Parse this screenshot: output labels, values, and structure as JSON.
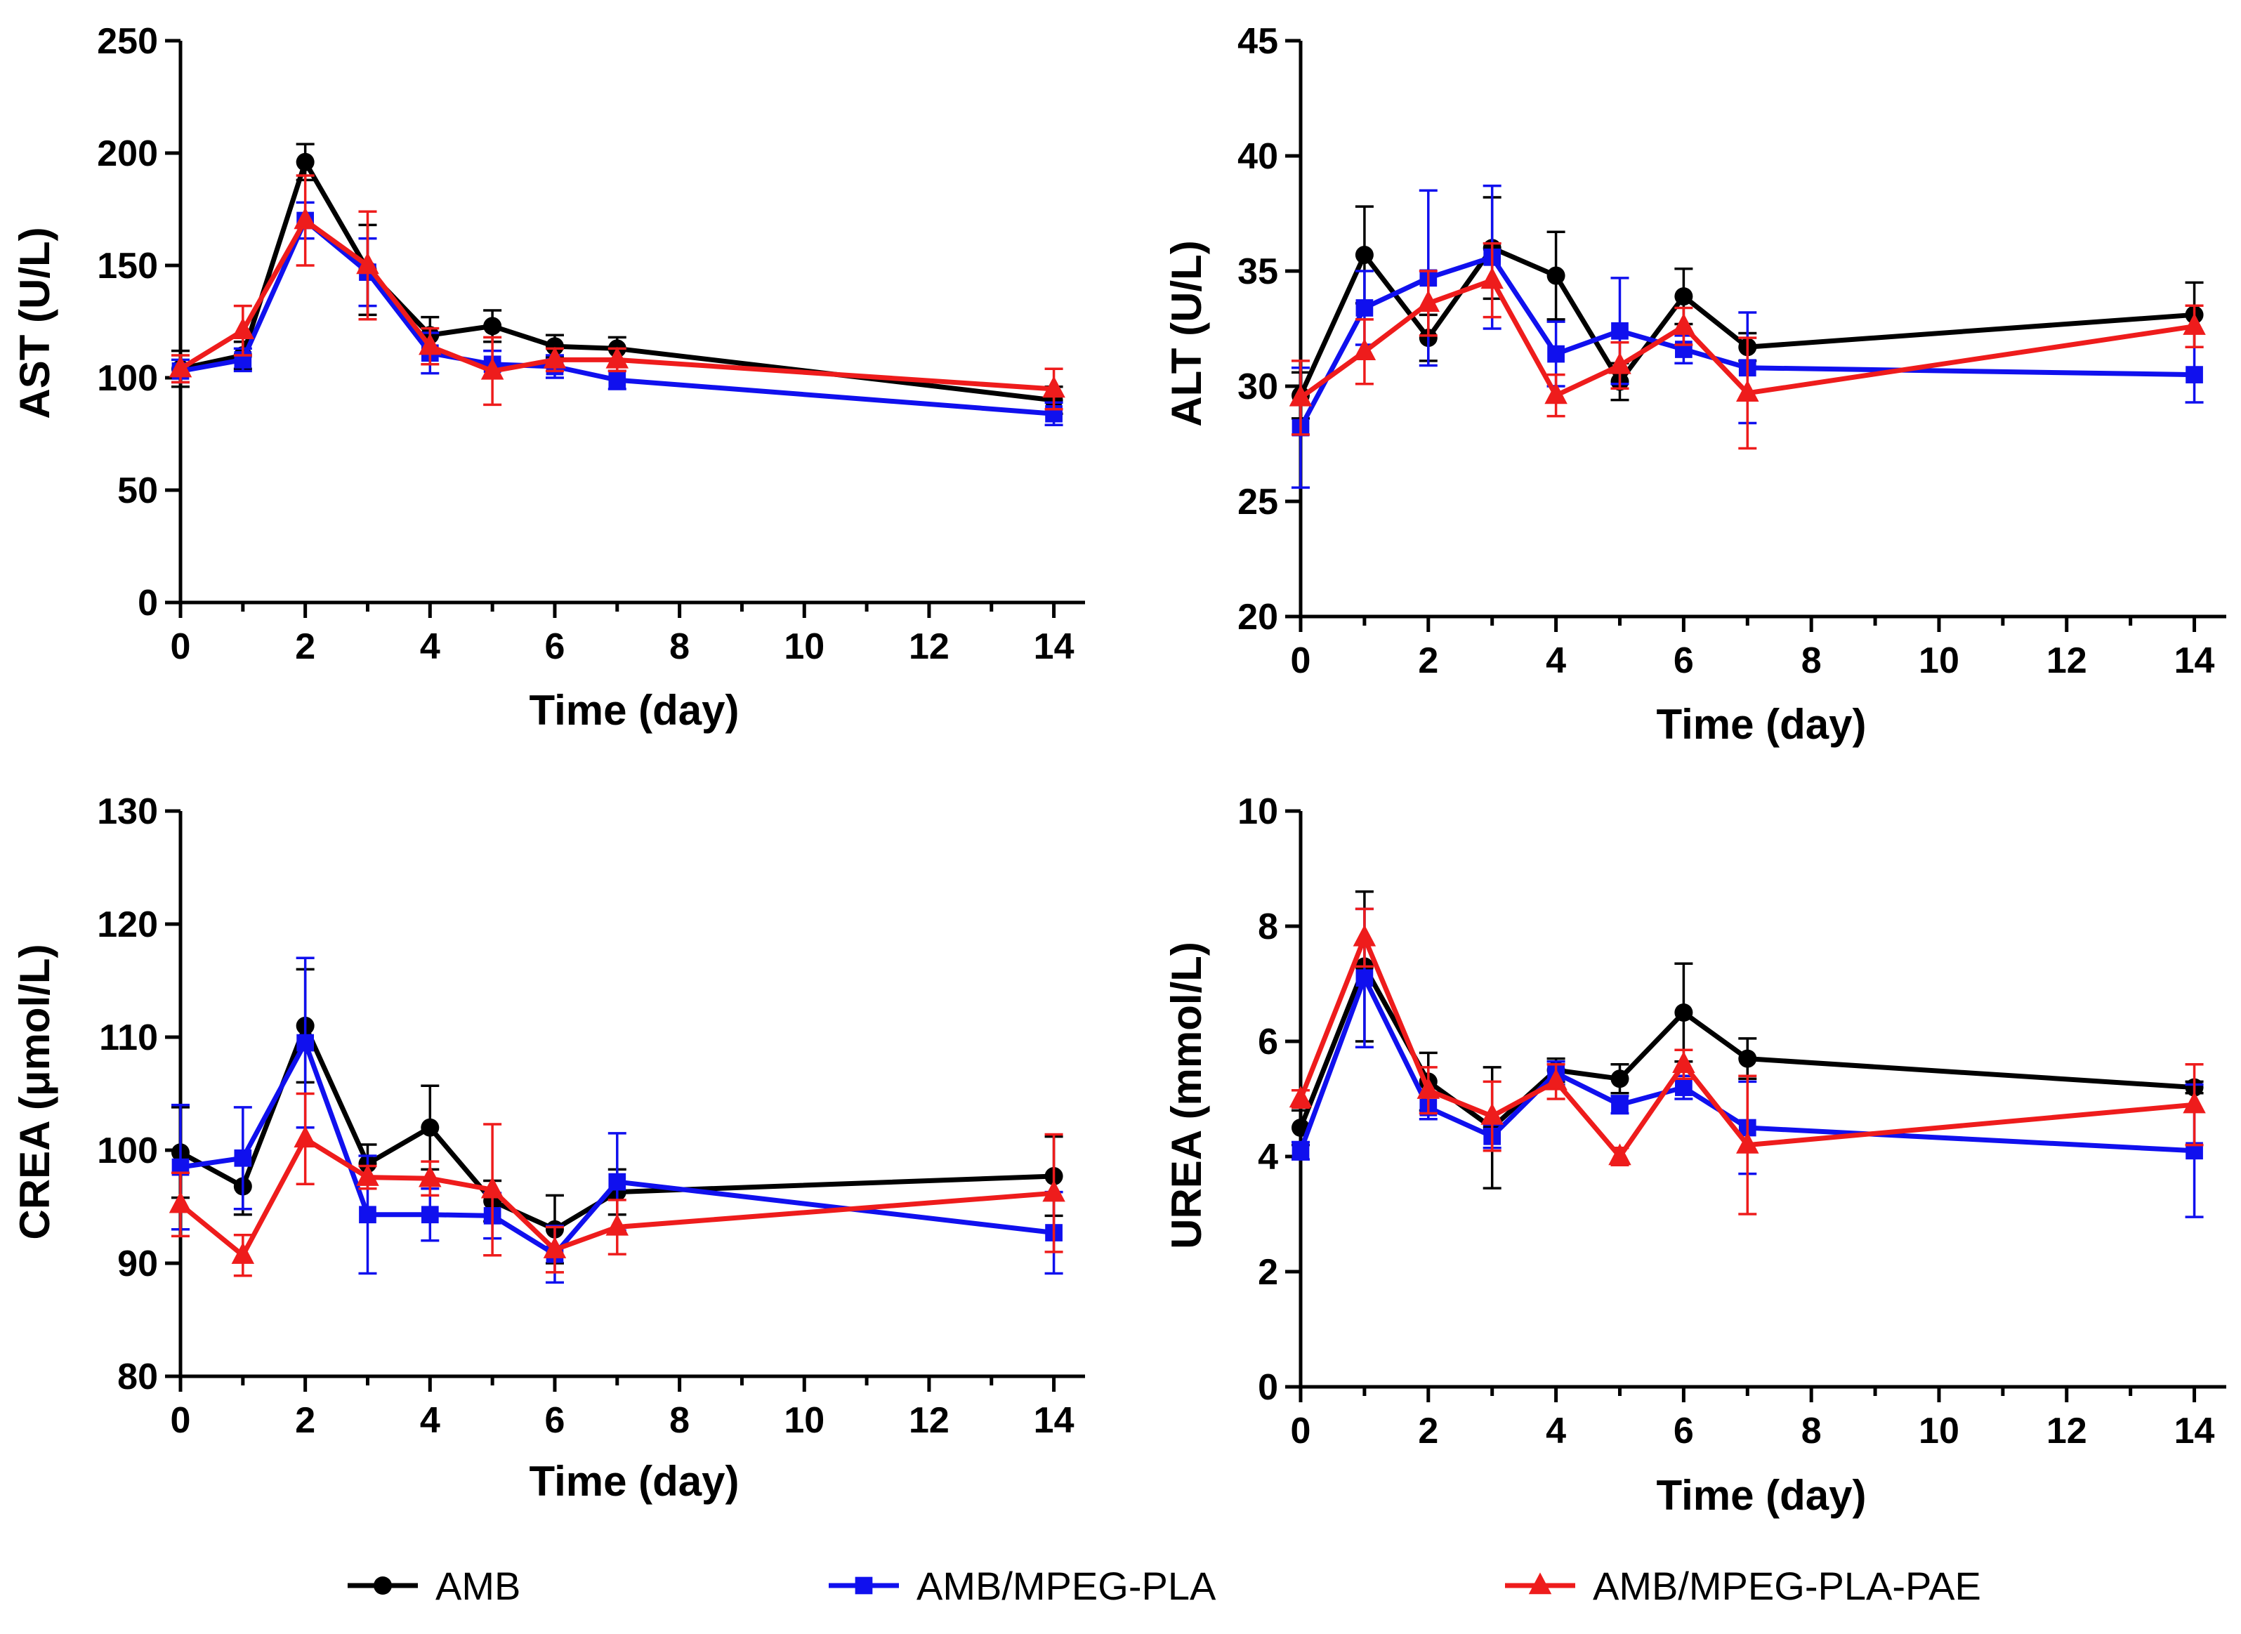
{
  "colors": {
    "AMB": "#000000",
    "AMB/MPEG-PLA": "#1010ee",
    "AMB/MPEG-PLA-PAE": "#ee1c1c"
  },
  "legend": [
    {
      "label": "AMB",
      "marker": "circle",
      "color": "#000000"
    },
    {
      "label": "AMB/MPEG-PLA",
      "marker": "square",
      "color": "#1010ee"
    },
    {
      "label": "AMB/MPEG-PLA-PAE",
      "marker": "triangle",
      "color": "#ee1c1c"
    }
  ],
  "chart_data": [
    {
      "type": "line",
      "title": "",
      "xlabel": "Time (day)",
      "ylabel": "AST (U/L)",
      "x": [
        0,
        1,
        2,
        3,
        4,
        5,
        6,
        7,
        14
      ],
      "xticks": [
        0,
        2,
        4,
        6,
        8,
        10,
        12,
        14
      ],
      "xlim": [
        0,
        14.5
      ],
      "yticks": [
        0,
        50,
        100,
        150,
        200,
        250
      ],
      "ylim": [
        0,
        250
      ],
      "series": [
        {
          "name": "AMB",
          "marker": "circle",
          "values": [
            104,
            110,
            196,
            148,
            119,
            123,
            114,
            113,
            90
          ],
          "errors": [
            8,
            6,
            8,
            20,
            8,
            7,
            5,
            5,
            6
          ]
        },
        {
          "name": "AMB/MPEG-PLA",
          "marker": "square",
          "values": [
            103,
            108,
            170,
            147,
            111,
            106,
            105,
            99,
            84
          ],
          "errors": [
            5,
            5,
            8,
            15,
            9,
            6,
            5,
            4,
            5
          ]
        },
        {
          "name": "AMB/MPEG-PLA-PAE",
          "marker": "triangle",
          "values": [
            104,
            121,
            170,
            150,
            114,
            103,
            108,
            108,
            95
          ],
          "errors": [
            6,
            11,
            20,
            24,
            8,
            15,
            5,
            5,
            9
          ]
        }
      ]
    },
    {
      "type": "line",
      "title": "",
      "xlabel": "Time (day)",
      "ylabel": "ALT (U/L)",
      "x": [
        0,
        1,
        2,
        3,
        4,
        5,
        6,
        7,
        14
      ],
      "xticks": [
        0,
        2,
        4,
        6,
        8,
        10,
        12,
        14
      ],
      "xlim": [
        0,
        14.5
      ],
      "yticks": [
        20,
        25,
        30,
        35,
        40,
        45
      ],
      "ylim": [
        20,
        45
      ],
      "series": [
        {
          "name": "AMB",
          "marker": "circle",
          "values": [
            29.6,
            35.7,
            32.1,
            36.0,
            34.8,
            30.2,
            33.9,
            31.7,
            33.1
          ],
          "errors": [
            1.0,
            2.1,
            1.0,
            2.2,
            1.9,
            0.8,
            1.2,
            0.6,
            1.4
          ]
        },
        {
          "name": "AMB/MPEG-PLA",
          "marker": "square",
          "values": [
            28.2,
            33.4,
            34.7,
            35.6,
            31.4,
            32.4,
            31.6,
            30.8,
            30.5
          ],
          "errors": [
            2.6,
            1.6,
            3.8,
            3.1,
            1.4,
            2.3,
            0.6,
            2.4,
            1.2
          ]
        },
        {
          "name": "AMB/MPEG-PLA-PAE",
          "marker": "triangle",
          "values": [
            29.5,
            31.5,
            33.6,
            34.6,
            29.6,
            30.9,
            32.6,
            29.7,
            32.6
          ],
          "errors": [
            1.6,
            1.4,
            1.4,
            1.6,
            0.9,
            1.0,
            0.8,
            2.4,
            0.9
          ]
        }
      ]
    },
    {
      "type": "line",
      "title": "",
      "xlabel": "Time (day)",
      "ylabel": "CREA (μmol/L)",
      "x": [
        0,
        1,
        2,
        3,
        4,
        5,
        6,
        7,
        14
      ],
      "xticks": [
        0,
        2,
        4,
        6,
        8,
        10,
        12,
        14
      ],
      "xlim": [
        0,
        14.5
      ],
      "yticks": [
        80,
        90,
        100,
        110,
        120,
        130
      ],
      "ylim": [
        80,
        130
      ],
      "series": [
        {
          "name": "AMB",
          "marker": "circle",
          "values": [
            99.8,
            96.8,
            111.0,
            98.8,
            102.0,
            95.5,
            93.0,
            96.3,
            97.7
          ],
          "errors": [
            4.0,
            2.5,
            5.0,
            1.7,
            3.7,
            1.8,
            3.0,
            2.0,
            3.5
          ]
        },
        {
          "name": "AMB/MPEG-PLA",
          "marker": "square",
          "values": [
            98.5,
            99.3,
            109.5,
            94.3,
            94.3,
            94.2,
            90.8,
            97.2,
            92.7
          ],
          "errors": [
            5.5,
            4.5,
            7.5,
            5.2,
            2.3,
            2.0,
            2.5,
            4.3,
            3.6
          ]
        },
        {
          "name": "AMB/MPEG-PLA-PAE",
          "marker": "triangle",
          "values": [
            95.2,
            90.7,
            101.0,
            97.6,
            97.5,
            96.5,
            91.2,
            93.2,
            96.2
          ],
          "errors": [
            2.8,
            1.8,
            4.0,
            1.0,
            1.5,
            5.8,
            2.0,
            2.4,
            5.2
          ]
        }
      ]
    },
    {
      "type": "line",
      "title": "",
      "xlabel": "Time (day)",
      "ylabel": "UREA (mmol/L)",
      "x": [
        0,
        1,
        2,
        3,
        4,
        5,
        6,
        7,
        14
      ],
      "xticks": [
        0,
        2,
        4,
        6,
        8,
        10,
        12,
        14
      ],
      "xlim": [
        0,
        14.5
      ],
      "yticks": [
        0,
        2,
        4,
        6,
        8,
        10
      ],
      "ylim": [
        0,
        10
      ],
      "series": [
        {
          "name": "AMB",
          "marker": "circle",
          "values": [
            4.5,
            7.3,
            5.3,
            4.5,
            5.5,
            5.35,
            6.5,
            5.7,
            5.2
          ],
          "errors": [
            0.3,
            1.3,
            0.5,
            1.05,
            0.2,
            0.25,
            0.85,
            0.35,
            0.1
          ]
        },
        {
          "name": "AMB/MPEG-PLA",
          "marker": "square",
          "values": [
            4.1,
            7.1,
            4.85,
            4.35,
            5.45,
            4.9,
            5.2,
            4.5,
            4.1
          ],
          "errors": [
            0.15,
            1.2,
            0.2,
            0.2,
            0.2,
            0.15,
            0.2,
            0.8,
            1.15
          ]
        },
        {
          "name": "AMB/MPEG-PLA-PAE",
          "marker": "triangle",
          "values": [
            5.0,
            7.8,
            5.15,
            4.7,
            5.3,
            4.0,
            5.6,
            4.2,
            4.9
          ],
          "errors": [
            0.15,
            0.5,
            0.4,
            0.6,
            0.3,
            0.15,
            0.25,
            1.2,
            0.7
          ]
        }
      ]
    }
  ]
}
